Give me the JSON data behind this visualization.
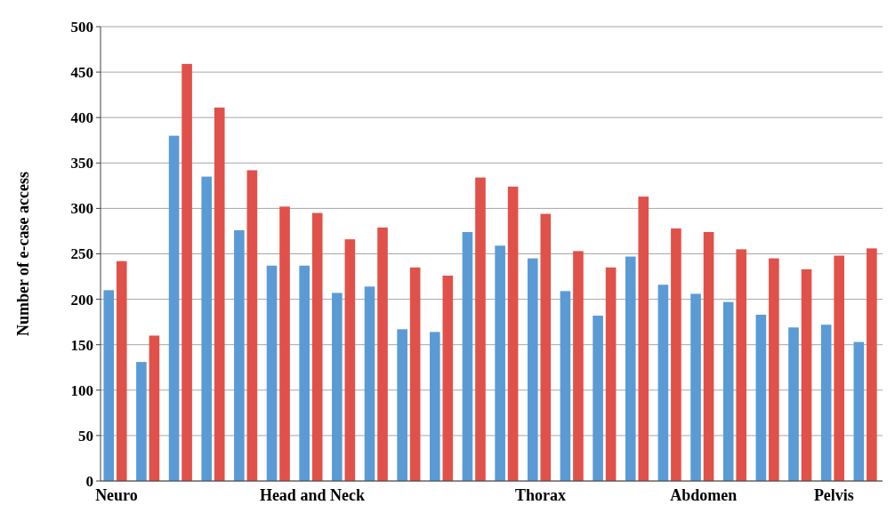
{
  "chart_data": {
    "type": "bar",
    "ylabel": "Number of e-case access",
    "categories": [
      "Neuro",
      null,
      null,
      null,
      null,
      null,
      "Head and Neck",
      null,
      null,
      null,
      null,
      null,
      null,
      "Thorax",
      null,
      null,
      null,
      null,
      "Abdomen",
      null,
      null,
      null,
      "Pelvis",
      null
    ],
    "series": [
      {
        "color": "#5b9bd5",
        "values": [
          210,
          131,
          380,
          335,
          276,
          237,
          237,
          207,
          214,
          167,
          164,
          274,
          259,
          245,
          209,
          182,
          247,
          216,
          206,
          197,
          183,
          169,
          172,
          153
        ]
      },
      {
        "color": "#e0514a",
        "values": [
          242,
          160,
          459,
          411,
          342,
          302,
          295,
          266,
          279,
          235,
          226,
          334,
          324,
          294,
          253,
          235,
          313,
          278,
          274,
          255,
          245,
          233,
          248,
          256
        ]
      }
    ],
    "ylim": [
      0,
      500
    ],
    "yticks": [
      0,
      50,
      100,
      150,
      200,
      250,
      300,
      350,
      400,
      450,
      500
    ],
    "grid": "y"
  }
}
